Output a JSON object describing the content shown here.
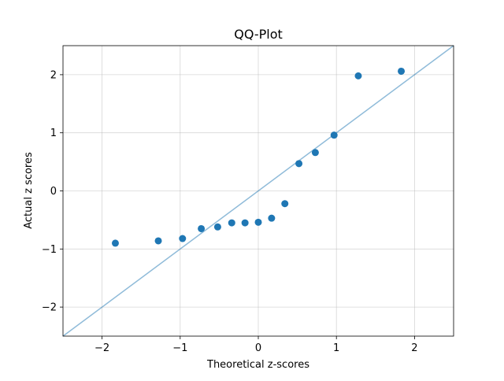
{
  "chart_data": {
    "type": "scatter",
    "title": "QQ-Plot",
    "xlabel": "Theoretical z-scores",
    "ylabel": "Actual z scores",
    "xlim": [
      -2.5,
      2.5
    ],
    "ylim": [
      -2.5,
      2.5
    ],
    "xticks": [
      -2,
      -1,
      0,
      1,
      2
    ],
    "yticks": [
      -2,
      -1,
      0,
      1,
      2
    ],
    "xtick_labels": [
      "−2",
      "−1",
      "0",
      "1",
      "2"
    ],
    "ytick_labels": [
      "−2",
      "−1",
      "0",
      "1",
      "2"
    ],
    "grid": true,
    "series": [
      {
        "kind": "points",
        "color": "#1f77b4",
        "x": [
          -1.83,
          -1.28,
          -0.97,
          -0.73,
          -0.52,
          -0.34,
          -0.17,
          0.0,
          0.17,
          0.34,
          0.52,
          0.73,
          0.97,
          1.28,
          1.83
        ],
        "y": [
          -0.9,
          -0.86,
          -0.82,
          -0.65,
          -0.62,
          -0.55,
          -0.55,
          -0.54,
          -0.47,
          -0.22,
          0.47,
          0.66,
          0.96,
          1.98,
          2.06
        ]
      },
      {
        "kind": "reference-line",
        "color": "#1f77b4",
        "opacity": 0.5,
        "x": [
          -2.5,
          2.5
        ],
        "y": [
          -2.5,
          2.5
        ]
      }
    ]
  }
}
